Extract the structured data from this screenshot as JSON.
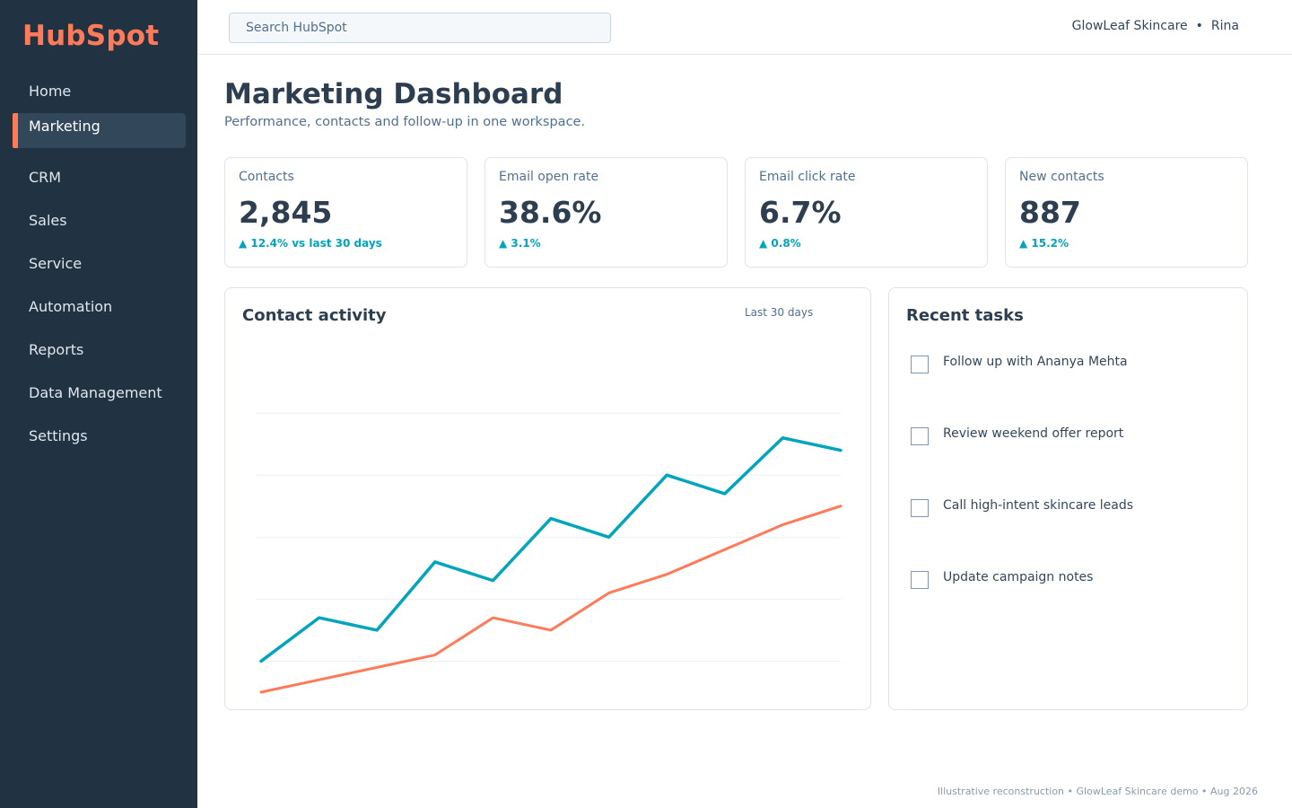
{
  "app": {
    "brand": "HubSpot"
  },
  "sidebar": {
    "items": [
      {
        "label": "Home",
        "active": false
      },
      {
        "label": "Marketing",
        "active": true
      },
      {
        "label": "CRM",
        "active": false
      },
      {
        "label": "Sales",
        "active": false
      },
      {
        "label": "Service",
        "active": false
      },
      {
        "label": "Automation",
        "active": false
      },
      {
        "label": "Reports",
        "active": false
      },
      {
        "label": "Data Management",
        "active": false
      },
      {
        "label": "Settings",
        "active": false
      }
    ]
  },
  "topbar": {
    "search_placeholder": "Search HubSpot",
    "account_name": "GlowLeaf Skincare",
    "separator": "•",
    "user_name": "Rina"
  },
  "page": {
    "title": "Marketing Dashboard",
    "subtitle": "Performance, contacts and follow-up in one workspace."
  },
  "kpis": [
    {
      "label": "Contacts",
      "value": "2,845",
      "delta": "▲ 12.4% vs last 30 days"
    },
    {
      "label": "Email open rate",
      "value": "38.6%",
      "delta": "▲ 3.1%"
    },
    {
      "label": "Email click rate",
      "value": "6.7%",
      "delta": "▲ 0.8%"
    },
    {
      "label": "New contacts",
      "value": "887",
      "delta": "▲ 15.2%"
    }
  ],
  "activity": {
    "title": "Contact activity",
    "range": "Last 30 days"
  },
  "chart_data": {
    "type": "line",
    "title": "Contact activity",
    "xlabel": "",
    "ylabel": "",
    "x": [
      1,
      2,
      3,
      4,
      5,
      6,
      7,
      8,
      9,
      10,
      11
    ],
    "ylim": [
      -0.5,
      5
    ],
    "grid": true,
    "legend": "none",
    "series": [
      {
        "color": "#00a4bd",
        "values": [
          0,
          0.7,
          0.5,
          1.6,
          1.3,
          2.3,
          2.0,
          3.0,
          2.7,
          3.6,
          3.4
        ]
      },
      {
        "color": "#ff7a59",
        "values": [
          -0.5,
          -0.3,
          -0.1,
          0.1,
          0.7,
          0.5,
          1.1,
          1.4,
          1.8,
          2.2,
          2.5
        ]
      }
    ]
  },
  "tasks": {
    "title": "Recent tasks",
    "items": [
      {
        "label": "Follow up with Ananya Mehta",
        "done": false
      },
      {
        "label": "Review weekend offer report",
        "done": false
      },
      {
        "label": "Call high-intent skincare leads",
        "done": false
      },
      {
        "label": "Update campaign notes",
        "done": false
      }
    ]
  },
  "footer": {
    "text": "Illustrative reconstruction • GlowLeaf Skincare demo • Aug 2026"
  },
  "colors": {
    "accent": "#ff7a59",
    "sidebar": "#213243",
    "teal": "#00a4bd",
    "text": "#2d3e50"
  }
}
